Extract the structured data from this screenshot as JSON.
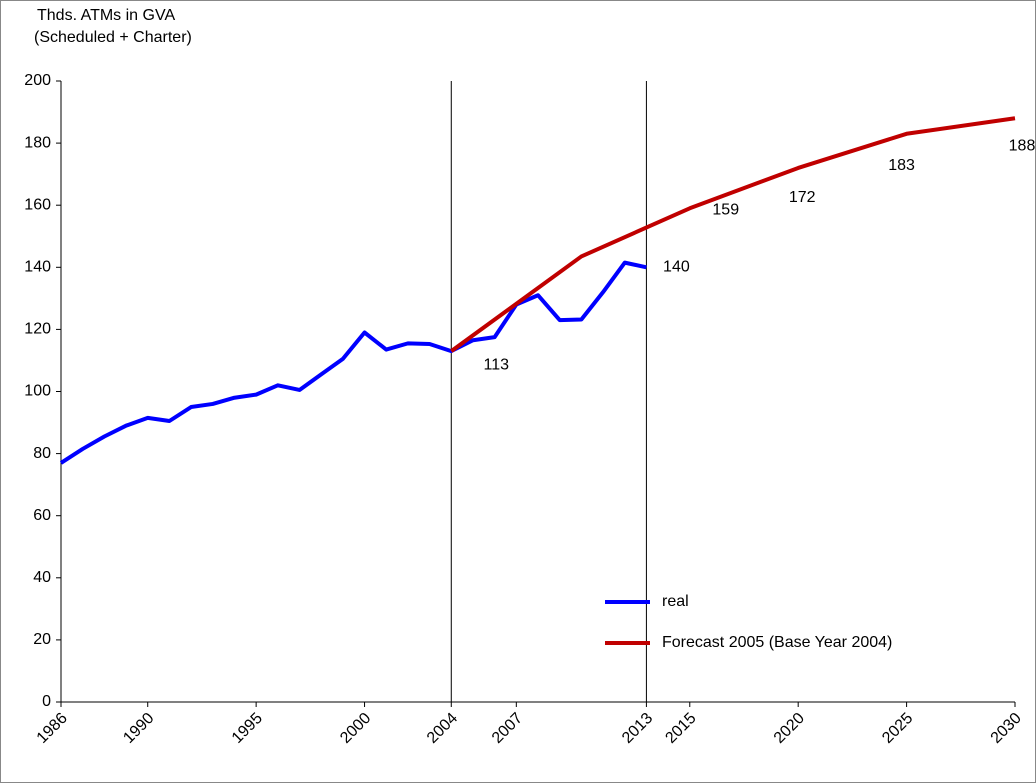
{
  "chart_data": {
    "type": "line",
    "title": "Thds. ATMs in GVA",
    "subtitle": "(Scheduled + Charter)",
    "xlim": [
      1986,
      2030
    ],
    "xticks": [
      1986,
      1990,
      1995,
      2000,
      2004,
      2007,
      2013,
      2015,
      2020,
      2025,
      2030
    ],
    "ylim": [
      0,
      200
    ],
    "yticks": [
      0,
      20,
      40,
      60,
      80,
      100,
      120,
      140,
      160,
      180,
      200
    ],
    "vlines": [
      2004,
      2013
    ],
    "grid": false,
    "legend": "lower-right",
    "series": [
      {
        "name": "real",
        "color": "#0000ff",
        "x": [
          1986,
          1987,
          1988,
          1989,
          1990,
          1991,
          1992,
          1993,
          1994,
          1995,
          1996,
          1997,
          1998,
          1999,
          2000,
          2001,
          2002,
          2003,
          2004,
          2005,
          2006,
          2007,
          2008,
          2009,
          2010,
          2011,
          2012,
          2013
        ],
        "values": [
          77,
          81.5,
          85.5,
          89,
          91.5,
          90.5,
          95,
          96,
          98,
          99,
          102,
          100.5,
          105.5,
          110.5,
          119,
          113.5,
          115.5,
          115.3,
          113,
          116.5,
          117.5,
          128,
          131,
          123,
          123.2,
          132,
          141.5,
          140
        ],
        "labeled": [
          18,
          27
        ]
      },
      {
        "name": "Forecast 2005 (Base Year 2004)",
        "color": "#c00000",
        "x": [
          2004,
          2010,
          2015,
          2020,
          2025,
          2030
        ],
        "values": [
          113,
          143.5,
          159,
          172,
          183,
          188
        ],
        "labeled": [
          2,
          3,
          4,
          5
        ]
      }
    ]
  }
}
